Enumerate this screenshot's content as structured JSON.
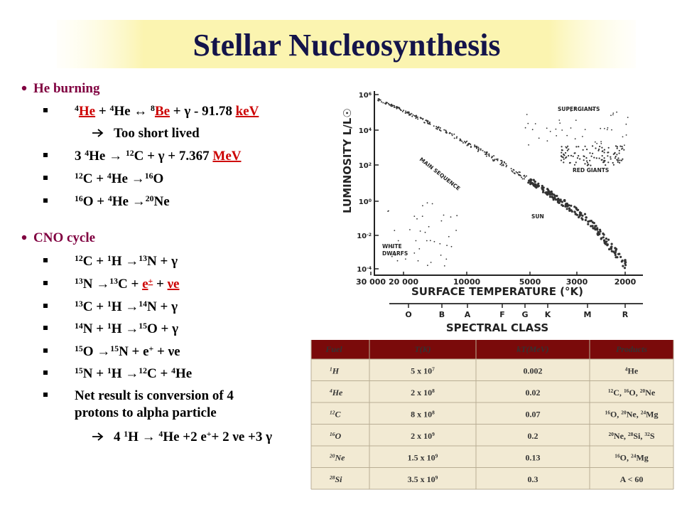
{
  "title": "Stellar Nucleosynthesis",
  "bullets": [
    {
      "level": 1,
      "parts": [
        {
          "t": "He burning"
        }
      ]
    },
    {
      "level": 2,
      "parts": [
        {
          "sup": "4"
        },
        {
          "u": "He"
        },
        {
          "t": " + "
        },
        {
          "sup": "4"
        },
        {
          "t": "He ↔ "
        },
        {
          "sup": "8"
        },
        {
          "u": "Be"
        },
        {
          "t": " + γ - 91.78 "
        },
        {
          "u": "keV"
        }
      ]
    },
    {
      "level": 3,
      "parts": [
        {
          "t": "Too short lived"
        }
      ]
    },
    {
      "level": 2,
      "parts": [
        {
          "t": "3 "
        },
        {
          "sup": "4"
        },
        {
          "t": "He → "
        },
        {
          "sup": "12"
        },
        {
          "t": "C + γ + 7.367 "
        },
        {
          "u": "MeV"
        }
      ]
    },
    {
      "level": 2,
      "parts": [
        {
          "sup": "12"
        },
        {
          "t": "C + "
        },
        {
          "sup": "4"
        },
        {
          "t": "He →"
        },
        {
          "sup": "16"
        },
        {
          "t": "O"
        }
      ]
    },
    {
      "level": 2,
      "parts": [
        {
          "sup": "16"
        },
        {
          "t": "O + "
        },
        {
          "sup": "4"
        },
        {
          "t": "He →"
        },
        {
          "sup": "20"
        },
        {
          "t": "Ne"
        }
      ]
    },
    {
      "level": 1,
      "parts": [
        {
          "t": "CNO cycle"
        }
      ]
    },
    {
      "level": 2,
      "parts": [
        {
          "sup": "12"
        },
        {
          "t": "C + "
        },
        {
          "sup": "1"
        },
        {
          "t": "H →"
        },
        {
          "sup": "13"
        },
        {
          "t": "N + γ"
        }
      ]
    },
    {
      "level": 2,
      "parts": [
        {
          "sup": "13"
        },
        {
          "t": "N →"
        },
        {
          "sup": "13"
        },
        {
          "t": "C + "
        },
        {
          "u": "e"
        },
        {
          "usup": "+"
        },
        {
          "t": " + "
        },
        {
          "u": "νe"
        }
      ]
    },
    {
      "level": 2,
      "parts": [
        {
          "sup": "13"
        },
        {
          "t": "C + "
        },
        {
          "sup": "1"
        },
        {
          "t": "H →"
        },
        {
          "sup": "14"
        },
        {
          "t": "N + γ"
        }
      ]
    },
    {
      "level": 2,
      "parts": [
        {
          "sup": "14"
        },
        {
          "t": "N + "
        },
        {
          "sup": "1"
        },
        {
          "t": "H →"
        },
        {
          "sup": "15"
        },
        {
          "t": "O + γ"
        }
      ]
    },
    {
      "level": 2,
      "parts": [
        {
          "sup": "15"
        },
        {
          "t": "O →"
        },
        {
          "sup": "15"
        },
        {
          "t": "N + e"
        },
        {
          "sup": "+"
        },
        {
          "t": " + νe"
        }
      ]
    },
    {
      "level": 2,
      "parts": [
        {
          "sup": "15"
        },
        {
          "t": "N + "
        },
        {
          "sup": "1"
        },
        {
          "t": "H →"
        },
        {
          "sup": "12"
        },
        {
          "t": "C + "
        },
        {
          "sup": "4"
        },
        {
          "t": "He"
        }
      ]
    },
    {
      "level": 2,
      "parts": [
        {
          "t": "Net result is conversion of 4"
        }
      ],
      "continuation": [
        {
          "t": "protons to alpha particle"
        }
      ]
    },
    {
      "level": 3,
      "parts": [
        {
          "t": "4 "
        },
        {
          "sup": "1"
        },
        {
          "t": "H → "
        },
        {
          "sup": "4"
        },
        {
          "t": "He +2 e"
        },
        {
          "sup": "+"
        },
        {
          "t": "+ 2 νe +3 γ"
        }
      ]
    }
  ],
  "hr_diagram": {
    "y_axis_label": "LUMINOSITY  L/L☉",
    "yticks": [
      [
        {
          "t": "10"
        },
        {
          "sup": "6"
        }
      ],
      [
        {
          "t": "10"
        },
        {
          "sup": "4"
        }
      ],
      [
        {
          "t": "10"
        },
        {
          "sup": "2"
        }
      ],
      [
        {
          "t": "10"
        },
        {
          "sup": "0"
        }
      ],
      [
        {
          "t": "10"
        },
        {
          "sup": "-2"
        }
      ],
      [
        {
          "t": "10"
        },
        {
          "sup": "-4"
        }
      ]
    ],
    "xticks": [
      "30 000",
      "20 000",
      "10000",
      "5000",
      "3000",
      "2000"
    ],
    "x_axis_label": "SURFACE  TEMPERATURE  (°K)",
    "spectral_classes": [
      "O",
      "B",
      "A",
      "F",
      "G",
      "K",
      "M",
      "R"
    ],
    "spectral_label": "SPECTRAL  CLASS",
    "regions": [
      "SUPERGIANTS",
      "RED  GIANTS",
      "MAIN  SEQUENCE",
      "SUN",
      "WHITE",
      "DWARFS"
    ]
  },
  "table": {
    "header": [
      "Fuel",
      "T(K)",
      "kT(MeV)",
      "Products"
    ],
    "rows": [
      [
        [
          {
            "sup": "1"
          },
          {
            "t": "H"
          }
        ],
        [
          {
            "t": "5 x 10"
          },
          {
            "sup": "7"
          }
        ],
        [
          {
            "t": "0.002"
          }
        ],
        [
          {
            "sup": "4"
          },
          {
            "t": "He"
          }
        ]
      ],
      [
        [
          {
            "sup": "4"
          },
          {
            "t": "He"
          }
        ],
        [
          {
            "t": "2 x 10"
          },
          {
            "sup": "8"
          }
        ],
        [
          {
            "t": "0.02"
          }
        ],
        [
          {
            "sup": "12"
          },
          {
            "t": "C, "
          },
          {
            "sup": "16"
          },
          {
            "t": "O, "
          },
          {
            "sup": "20"
          },
          {
            "t": "Ne"
          }
        ]
      ],
      [
        [
          {
            "sup": "12"
          },
          {
            "t": "C"
          }
        ],
        [
          {
            "t": "8 x 10"
          },
          {
            "sup": "8"
          }
        ],
        [
          {
            "t": "0.07"
          }
        ],
        [
          {
            "sup": "16"
          },
          {
            "t": "O, "
          },
          {
            "sup": "20"
          },
          {
            "t": "Ne, "
          },
          {
            "sup": "24"
          },
          {
            "t": "Mg"
          }
        ]
      ],
      [
        [
          {
            "sup": "16"
          },
          {
            "t": "O"
          }
        ],
        [
          {
            "t": "2 x 10"
          },
          {
            "sup": "9"
          }
        ],
        [
          {
            "t": "0.2"
          }
        ],
        [
          {
            "sup": "20"
          },
          {
            "t": "Ne, "
          },
          {
            "sup": "28"
          },
          {
            "t": "Si, "
          },
          {
            "sup": "32"
          },
          {
            "t": "S"
          }
        ]
      ],
      [
        [
          {
            "sup": "20"
          },
          {
            "t": "Ne"
          }
        ],
        [
          {
            "t": "1.5 x 10"
          },
          {
            "sup": "9"
          }
        ],
        [
          {
            "t": "0.13"
          }
        ],
        [
          {
            "sup": "16"
          },
          {
            "t": "O, "
          },
          {
            "sup": "24"
          },
          {
            "t": "Mg"
          }
        ]
      ],
      [
        [
          {
            "sup": "28"
          },
          {
            "t": "Si"
          }
        ],
        [
          {
            "t": "3.5 x 10"
          },
          {
            "sup": "9"
          }
        ],
        [
          {
            "t": "0.3"
          }
        ],
        [
          {
            "t": "A < 60"
          }
        ]
      ]
    ]
  }
}
